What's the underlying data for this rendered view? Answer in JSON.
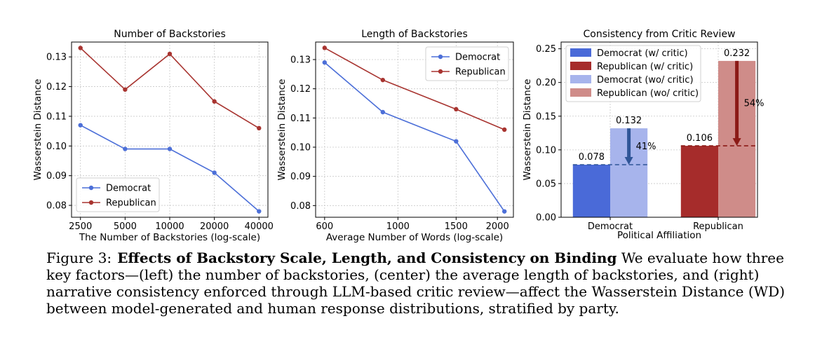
{
  "colors": {
    "democrat_line": "#4c6fd8",
    "republican_line": "#a83430",
    "democrat_bar": "#4a6ad8",
    "republican_bar": "#a62c2b",
    "democrat_bar_light": "#a7b4ec",
    "republican_bar_light": "#cf8c89",
    "democrat_arrow": "#2f5597",
    "republican_arrow": "#8b1a16"
  },
  "chart_data": [
    {
      "type": "line",
      "title": "Number of Backstories",
      "xlabel": "The Number of Backstories (log-scale)",
      "ylabel": "Wasserstein Distance",
      "x": [
        2500,
        5000,
        10000,
        20000,
        40000
      ],
      "x_scale": "log",
      "x_tick_labels": [
        "2500",
        "5000",
        "10000",
        "20000",
        "40000"
      ],
      "y_ticks": [
        "0.08",
        "0.09",
        "0.10",
        "0.11",
        "0.12",
        "0.13"
      ],
      "ylim": [
        0.076,
        0.135
      ],
      "grid": true,
      "legend_position": "lower-left",
      "series": [
        {
          "name": "Democrat",
          "values": [
            0.107,
            0.099,
            0.099,
            0.091,
            0.078
          ]
        },
        {
          "name": "Republican",
          "values": [
            0.133,
            0.119,
            0.131,
            0.115,
            0.106
          ]
        }
      ]
    },
    {
      "type": "line",
      "title": "Length of Backstories",
      "xlabel": "Average Number of Words (log-scale)",
      "ylabel": "Wasserstein Distance",
      "x": [
        600,
        900,
        1500,
        2100
      ],
      "x_scale": "log",
      "x_ticks": [
        600,
        1000,
        1500,
        2000
      ],
      "x_tick_labels": [
        "600",
        "1000",
        "1500",
        "2000"
      ],
      "y_ticks": [
        "0.08",
        "0.09",
        "0.10",
        "0.11",
        "0.12",
        "0.13"
      ],
      "ylim": [
        0.076,
        0.136
      ],
      "grid": true,
      "legend_position": "top-right",
      "series": [
        {
          "name": "Democrat",
          "values": [
            0.129,
            0.112,
            0.102,
            0.078
          ]
        },
        {
          "name": "Republican",
          "values": [
            0.134,
            0.123,
            0.113,
            0.106
          ]
        }
      ]
    },
    {
      "type": "bar",
      "title": "Consistency from Critic Review",
      "xlabel": "Political Affiliation",
      "ylabel": "Wasserstein Distance",
      "categories": [
        "Democrat",
        "Republican"
      ],
      "y_ticks": [
        "0.00",
        "0.05",
        "0.10",
        "0.15",
        "0.20",
        "0.25"
      ],
      "ylim": [
        0,
        0.26
      ],
      "grid": true,
      "legend_position": "top-left",
      "series": [
        {
          "name": "Democrat (w/ critic)",
          "category": "Democrat",
          "value": 0.078,
          "label": "0.078"
        },
        {
          "name": "Republican (w/ critic)",
          "category": "Republican",
          "value": 0.106,
          "label": "0.106"
        },
        {
          "name": "Democrat (wo/ critic)",
          "category": "Democrat",
          "value": 0.132,
          "label": "0.132"
        },
        {
          "name": "Republican (wo/ critic)",
          "category": "Republican",
          "value": 0.232,
          "label": "0.232"
        }
      ],
      "annotations": [
        {
          "category": "Democrat",
          "from": 0.132,
          "to": 0.078,
          "text": "41%"
        },
        {
          "category": "Republican",
          "from": 0.232,
          "to": 0.106,
          "text": "54%"
        }
      ]
    }
  ],
  "caption": {
    "figure_number": "Figure 3:",
    "bold_title": "Effects of Backstory Scale, Length, and Consistency on Binding",
    "body": "We evaluate how three key factors—(left) the number of backstories, (center) the average length of backstories, and (right) narrative consistency enforced through LLM-based critic review—affect the Wasserstein Distance (WD) between model-generated and human response distributions, stratified by party."
  }
}
